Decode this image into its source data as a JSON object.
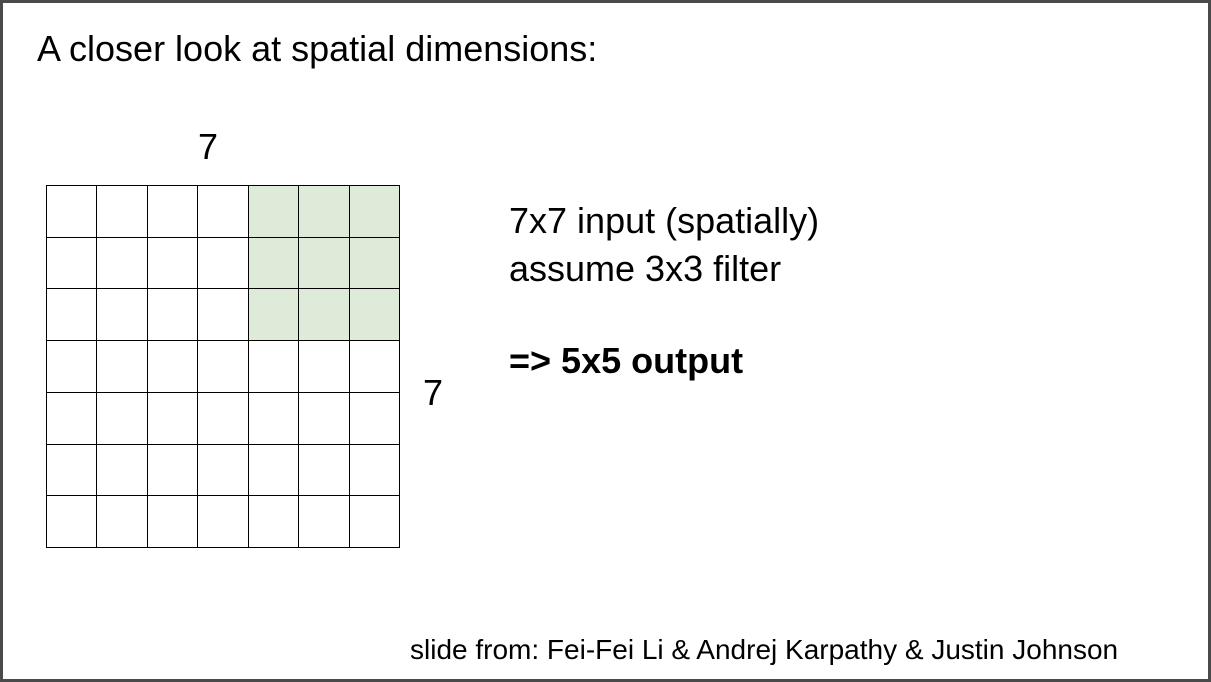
{
  "slide": {
    "title": "A closer look at spatial dimensions:",
    "grid": {
      "width_label": "7",
      "height_label": "7",
      "rows": 7,
      "cols": 7,
      "filter_rows": [
        0,
        1,
        2
      ],
      "filter_cols": [
        4,
        5,
        6
      ],
      "filter_color": "#deebd9"
    },
    "info": {
      "line1": "7x7 input (spatially)",
      "line2": "assume 3x3 filter",
      "result": "=> 5x5 output"
    },
    "credit": "slide from: Fei-Fei Li & Andrej Karpathy & Justin Johnson"
  }
}
